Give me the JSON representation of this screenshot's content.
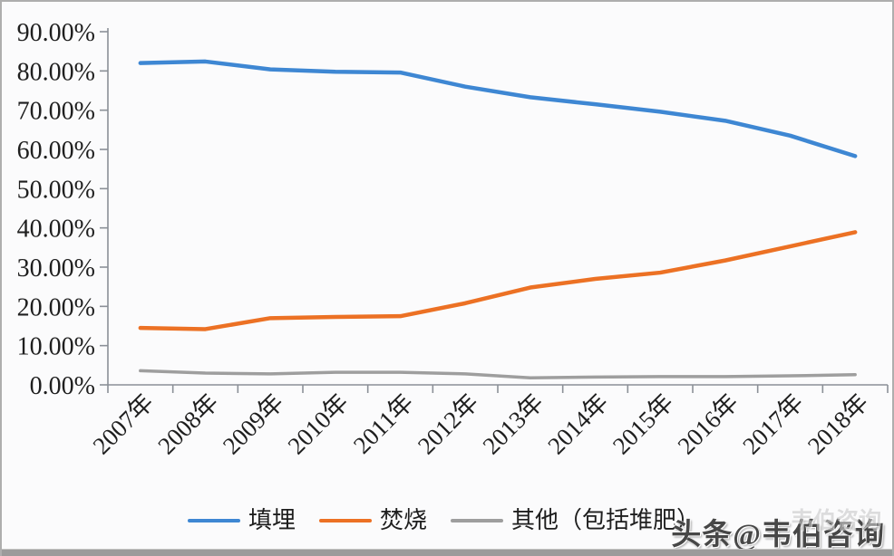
{
  "chart_data": {
    "type": "line",
    "title": "",
    "xlabel": "",
    "ylabel": "",
    "categories": [
      "2007年",
      "2008年",
      "2009年",
      "2010年",
      "2011年",
      "2012年",
      "2013年",
      "2014年",
      "2015年",
      "2016年",
      "2017年",
      "2018年"
    ],
    "series": [
      {
        "name": "填埋",
        "color": "#3e87d3",
        "values": [
          82.0,
          82.4,
          80.4,
          79.8,
          79.6,
          76.0,
          73.3,
          71.5,
          69.6,
          67.3,
          63.5,
          58.3
        ]
      },
      {
        "name": "焚烧",
        "color": "#ec7124",
        "values": [
          14.5,
          14.2,
          17.0,
          17.3,
          17.5,
          20.8,
          24.8,
          27.0,
          28.6,
          31.7,
          35.3,
          38.9
        ]
      },
      {
        "name": "其他（包括堆肥）",
        "color": "#9e9e9e",
        "values": [
          3.6,
          3.0,
          2.8,
          3.2,
          3.2,
          2.8,
          1.8,
          2.0,
          2.1,
          2.1,
          2.3,
          2.6
        ]
      }
    ],
    "ylim": [
      0,
      90
    ],
    "ytick_step": 10,
    "ytick_labels": [
      "0.00%",
      "10.00%",
      "20.00%",
      "30.00%",
      "40.00%",
      "50.00%",
      "60.00%",
      "70.00%",
      "80.00%",
      "90.00%"
    ],
    "grid": false,
    "legend_position": "bottom",
    "axis_color": "#8b9097",
    "text_color": "#1e1e1e"
  },
  "watermark": {
    "main": "头条@韦伯咨询",
    "ghost": "韦伯咨询"
  }
}
